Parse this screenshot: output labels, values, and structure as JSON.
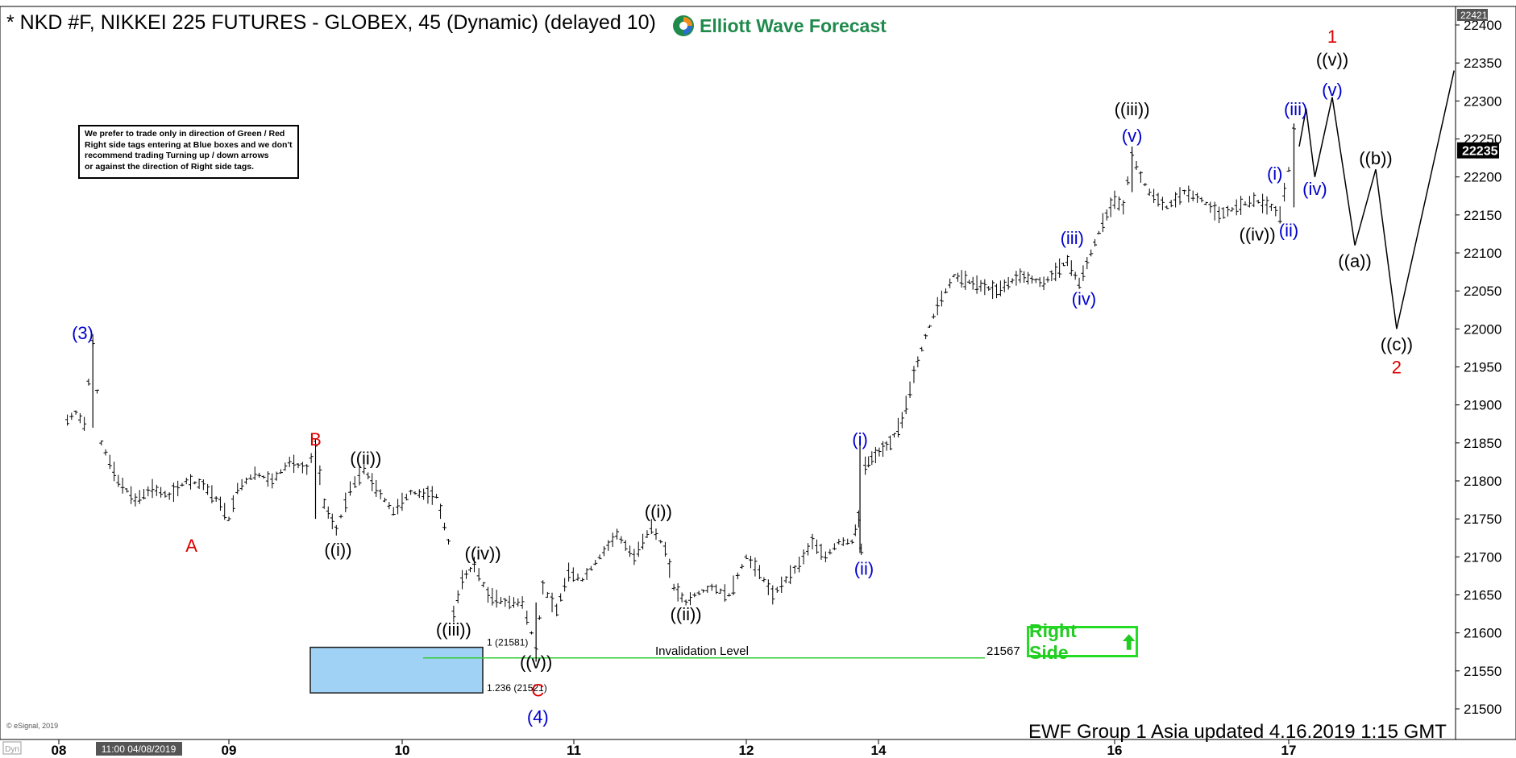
{
  "header": {
    "title": "* NKD #F, NIKKEI 225 FUTURES - GLOBEX, 45 (Dynamic) (delayed 10)",
    "logo_text": "Elliott Wave Forecast"
  },
  "disclaimer": {
    "lines": [
      "We prefer to trade only in direction of Green / Red",
      "Right side tags entering at Blue boxes and we don't",
      "recommend trading Turning up / down arrows",
      "or against the direction of Right side tags."
    ]
  },
  "right_side_tag": {
    "label": "Right Side",
    "color": "#22cc22"
  },
  "footer": {
    "text": "EWF Group  1 Asia  updated 4.16.2019 1:15 GMT",
    "esignal": "© eSignal, 2019",
    "dyn": "Dyn",
    "cursor_label": "11:00 04/08/2019"
  },
  "colors": {
    "blue": "#0000cc",
    "red": "#dd0000",
    "black": "#000000",
    "green_line": "#33cc33",
    "box_fill": "#9fd2f5",
    "box_stroke": "#1a1a1a"
  },
  "chart_data": {
    "type": "line",
    "x_ticks": [
      "08",
      "09",
      "10",
      "11",
      "12",
      "14",
      "16",
      "17"
    ],
    "y_ticks": [
      21500,
      21550,
      21600,
      21650,
      21700,
      21750,
      21800,
      21850,
      21900,
      21950,
      22000,
      22050,
      22100,
      22150,
      22200,
      22250,
      22300,
      22350,
      22400
    ],
    "ylim": [
      21477,
      22437
    ],
    "price_top_label": "22421",
    "last_price": "22235",
    "last_price_value": 22235,
    "price_series": [
      [
        0.05,
        21880
      ],
      [
        0.1,
        21890
      ],
      [
        0.15,
        21875
      ],
      [
        0.2,
        21985
      ],
      [
        0.25,
        21850
      ],
      [
        0.35,
        21800
      ],
      [
        0.45,
        21775
      ],
      [
        0.55,
        21790
      ],
      [
        0.65,
        21780
      ],
      [
        0.75,
        21800
      ],
      [
        0.85,
        21795
      ],
      [
        0.95,
        21770
      ],
      [
        1.0,
        21750
      ],
      [
        1.05,
        21790
      ],
      [
        1.15,
        21810
      ],
      [
        1.25,
        21800
      ],
      [
        1.35,
        21825
      ],
      [
        1.45,
        21815
      ],
      [
        1.5,
        21845
      ],
      [
        1.55,
        21770
      ],
      [
        1.62,
        21735
      ],
      [
        1.7,
        21790
      ],
      [
        1.78,
        21815
      ],
      [
        1.85,
        21790
      ],
      [
        1.95,
        21760
      ],
      [
        2.05,
        21785
      ],
      [
        2.2,
        21780
      ],
      [
        2.27,
        21720
      ],
      [
        2.3,
        21625
      ],
      [
        2.35,
        21670
      ],
      [
        2.42,
        21690
      ],
      [
        2.5,
        21650
      ],
      [
        2.6,
        21640
      ],
      [
        2.7,
        21640
      ],
      [
        2.78,
        21580
      ],
      [
        2.82,
        21660
      ],
      [
        2.9,
        21630
      ],
      [
        2.97,
        21680
      ],
      [
        3.05,
        21670
      ],
      [
        3.15,
        21700
      ],
      [
        3.25,
        21730
      ],
      [
        3.35,
        21700
      ],
      [
        3.45,
        21740
      ],
      [
        3.53,
        21710
      ],
      [
        3.58,
        21660
      ],
      [
        3.65,
        21640
      ],
      [
        3.7,
        21650
      ],
      [
        3.8,
        21660
      ],
      [
        3.9,
        21650
      ],
      [
        4.0,
        21700
      ],
      [
        4.1,
        21680
      ],
      [
        4.2,
        21650
      ],
      [
        4.3,
        21670
      ],
      [
        4.4,
        21690
      ],
      [
        4.5,
        21720
      ],
      [
        4.6,
        21700
      ],
      [
        4.7,
        21720
      ],
      [
        4.8,
        21720
      ],
      [
        4.85,
        21750
      ],
      [
        4.87,
        21710
      ],
      [
        4.9,
        21820
      ],
      [
        4.95,
        21830
      ],
      [
        5.05,
        21850
      ],
      [
        5.1,
        21880
      ],
      [
        5.15,
        21940
      ],
      [
        5.2,
        21990
      ],
      [
        5.25,
        22030
      ],
      [
        5.32,
        22070
      ],
      [
        5.4,
        22060
      ],
      [
        5.5,
        22050
      ],
      [
        5.6,
        22070
      ],
      [
        5.7,
        22060
      ],
      [
        5.8,
        22090
      ],
      [
        5.85,
        22060
      ],
      [
        5.9,
        22100
      ],
      [
        5.95,
        22140
      ],
      [
        6.0,
        22170
      ],
      [
        6.05,
        22160
      ],
      [
        6.1,
        22230
      ],
      [
        6.15,
        22200
      ],
      [
        6.2,
        22180
      ],
      [
        6.3,
        22160
      ],
      [
        6.4,
        22180
      ],
      [
        6.5,
        22170
      ],
      [
        6.6,
        22150
      ],
      [
        6.7,
        22160
      ],
      [
        6.8,
        22170
      ],
      [
        6.9,
        22160
      ],
      [
        6.95,
        22150
      ],
      [
        7.0,
        22210
      ],
      [
        7.03,
        22260
      ],
      [
        7.06,
        22240
      ]
    ],
    "projection": [
      [
        7.06,
        22240
      ],
      [
        7.1,
        22290
      ],
      [
        7.15,
        22200
      ],
      [
        7.25,
        22305
      ],
      [
        7.38,
        22110
      ],
      [
        7.5,
        22210
      ],
      [
        7.62,
        22000
      ],
      [
        7.95,
        22340
      ]
    ],
    "invalidation_level": {
      "label": "Invalidation Level",
      "value_text": "21567",
      "value": 21567
    },
    "blue_box": {
      "top": 21581,
      "bottom": 21521,
      "top_label": "1 (21581)",
      "bottom_label": "1.236 (21521)"
    },
    "wave_labels": [
      {
        "text": "(3)",
        "x": 0.14,
        "y": 21995,
        "color": "blue"
      },
      {
        "text": "A",
        "x": 0.78,
        "y": 21715,
        "color": "red"
      },
      {
        "text": "B",
        "x": 1.5,
        "y": 21855,
        "color": "red"
      },
      {
        "text": "((i))",
        "x": 1.63,
        "y": 21710,
        "color": "black"
      },
      {
        "text": "((ii))",
        "x": 1.79,
        "y": 21830,
        "color": "black"
      },
      {
        "text": "((iii))",
        "x": 2.3,
        "y": 21605,
        "color": "black"
      },
      {
        "text": "((iv))",
        "x": 2.47,
        "y": 21705,
        "color": "black"
      },
      {
        "text": "((v))",
        "x": 2.78,
        "y": 21562,
        "color": "black"
      },
      {
        "text": "C",
        "x": 2.79,
        "y": 21525,
        "color": "red"
      },
      {
        "text": "(4)",
        "x": 2.79,
        "y": 21490,
        "color": "blue"
      },
      {
        "text": "((i))",
        "x": 3.49,
        "y": 21760,
        "color": "black"
      },
      {
        "text": "((ii))",
        "x": 3.65,
        "y": 21625,
        "color": "black"
      },
      {
        "text": "(i)",
        "x": 4.86,
        "y": 21855,
        "color": "blue"
      },
      {
        "text": "(ii)",
        "x": 4.89,
        "y": 21685,
        "color": "blue"
      },
      {
        "text": "(iii)",
        "x": 5.82,
        "y": 22120,
        "color": "blue"
      },
      {
        "text": "(iv)",
        "x": 5.87,
        "y": 22040,
        "color": "blue"
      },
      {
        "text": "(v)",
        "x": 6.1,
        "y": 22255,
        "color": "blue"
      },
      {
        "text": "((iii))",
        "x": 6.1,
        "y": 22290,
        "color": "black"
      },
      {
        "text": "((iv))",
        "x": 6.82,
        "y": 22125,
        "color": "black"
      },
      {
        "text": "(i)",
        "x": 6.92,
        "y": 22205,
        "color": "blue"
      },
      {
        "text": "(ii)",
        "x": 7.0,
        "y": 22130,
        "color": "blue"
      },
      {
        "text": "(iii)",
        "x": 7.04,
        "y": 22290,
        "color": "blue"
      },
      {
        "text": "(iv)",
        "x": 7.15,
        "y": 22185,
        "color": "blue"
      },
      {
        "text": "(v)",
        "x": 7.25,
        "y": 22315,
        "color": "blue"
      },
      {
        "text": "((v))",
        "x": 7.25,
        "y": 22355,
        "color": "black"
      },
      {
        "text": "1",
        "x": 7.25,
        "y": 22385,
        "color": "red"
      },
      {
        "text": "((a))",
        "x": 7.38,
        "y": 22090,
        "color": "black"
      },
      {
        "text": "((b))",
        "x": 7.5,
        "y": 22225,
        "color": "black"
      },
      {
        "text": "((c))",
        "x": 7.62,
        "y": 21980,
        "color": "black"
      },
      {
        "text": "2",
        "x": 7.62,
        "y": 21950,
        "color": "red"
      }
    ]
  }
}
